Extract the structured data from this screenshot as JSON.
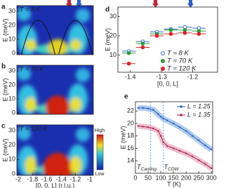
{
  "chart_data": [
    {
      "type": "heatmap",
      "panel": "a",
      "annotation": "T = 8 K",
      "ylabel": "E (meV)",
      "ylim": [
        -1,
        34
      ],
      "yticks": [
        0,
        10,
        20,
        30
      ],
      "xlim": [
        -2.02,
        -0.95
      ]
    },
    {
      "type": "heatmap",
      "panel": "b",
      "annotation": "T = 70 K",
      "ylabel": "E (meV)",
      "ylim": [
        -1,
        34
      ],
      "yticks": [
        0,
        10,
        20,
        30
      ],
      "xlim": [
        -2.02,
        -0.95
      ]
    },
    {
      "type": "heatmap",
      "panel": "c",
      "annotation": "T = 120 K",
      "ylabel": "E (meV)",
      "ylim": [
        -1,
        34
      ],
      "yticks": [
        0,
        10,
        20,
        30
      ],
      "xlim": [
        -2.02,
        -0.95
      ],
      "xticks": [
        -2,
        -1.8,
        -1.6,
        -1.4,
        -1.2,
        -1
      ],
      "xlabel": "[0, 0, L] (r.l.u.)",
      "colorbar": [
        "High",
        "Low"
      ]
    },
    {
      "type": "scatter",
      "panel": "d",
      "xlabel": "[0, 0, L]",
      "ylabel": "E (meV)",
      "xlim": [
        -1.44,
        -1.12
      ],
      "ylim": [
        1,
        35
      ],
      "xticks": [
        -1.4,
        -1.3,
        -1.2
      ],
      "yticks": [
        10,
        20,
        30
      ],
      "xerr": 0.022,
      "x": [
        -1.405,
        -1.36,
        -1.315,
        -1.27,
        -1.225,
        -1.18
      ],
      "series": [
        {
          "name": "T = 8 K",
          "color": "#2f6fd6",
          "marker": "open",
          "values": [
            12,
            17,
            22,
            23.5,
            24.5,
            24
          ]
        },
        {
          "name": "T = 70 K",
          "color": "#2e9b3a",
          "marker": "filled",
          "values": [
            11,
            16,
            21,
            23,
            23,
            22.5
          ]
        },
        {
          "name": "T = 120 K",
          "color": "#d9232a",
          "marker": "filled",
          "values": [
            5.5,
            14,
            20,
            21,
            21.5,
            21
          ]
        }
      ]
    },
    {
      "type": "line",
      "panel": "e",
      "xlabel": "T (K)",
      "ylabel": "E (meV)",
      "xlim": [
        0,
        305
      ],
      "ylim": [
        12,
        23.5
      ],
      "xticks": [
        0,
        50,
        100,
        150,
        200,
        250,
        300
      ],
      "yticks": [
        14,
        16,
        18,
        20,
        22
      ],
      "x": [
        10,
        30,
        50,
        70,
        90,
        100,
        110,
        125,
        150,
        175,
        200,
        225,
        250,
        275,
        300
      ],
      "series": [
        {
          "name": "L = 1.25",
          "color": "#2a5fb8",
          "band": "#8fb6e8",
          "values": [
            22.5,
            22.5,
            22.4,
            22.2,
            21.5,
            21.1,
            20.8,
            20.5,
            20.0,
            19.4,
            18.8,
            18.0,
            17.3,
            16.5,
            15.8
          ]
        },
        {
          "name": "L = 1.35",
          "color": "#a8243b",
          "band": "#e8a6c0",
          "values": [
            19.6,
            19.5,
            19.4,
            19.2,
            18.8,
            18.0,
            17.0,
            16.4,
            16.0,
            15.6,
            15.2,
            14.7,
            14.1,
            13.5,
            12.8
          ]
        }
      ],
      "vlines": [
        {
          "x": 60,
          "label": "T",
          "subscript": "Canting"
        },
        {
          "x": 110,
          "label": "T",
          "subscript": "CDW"
        }
      ]
    }
  ]
}
